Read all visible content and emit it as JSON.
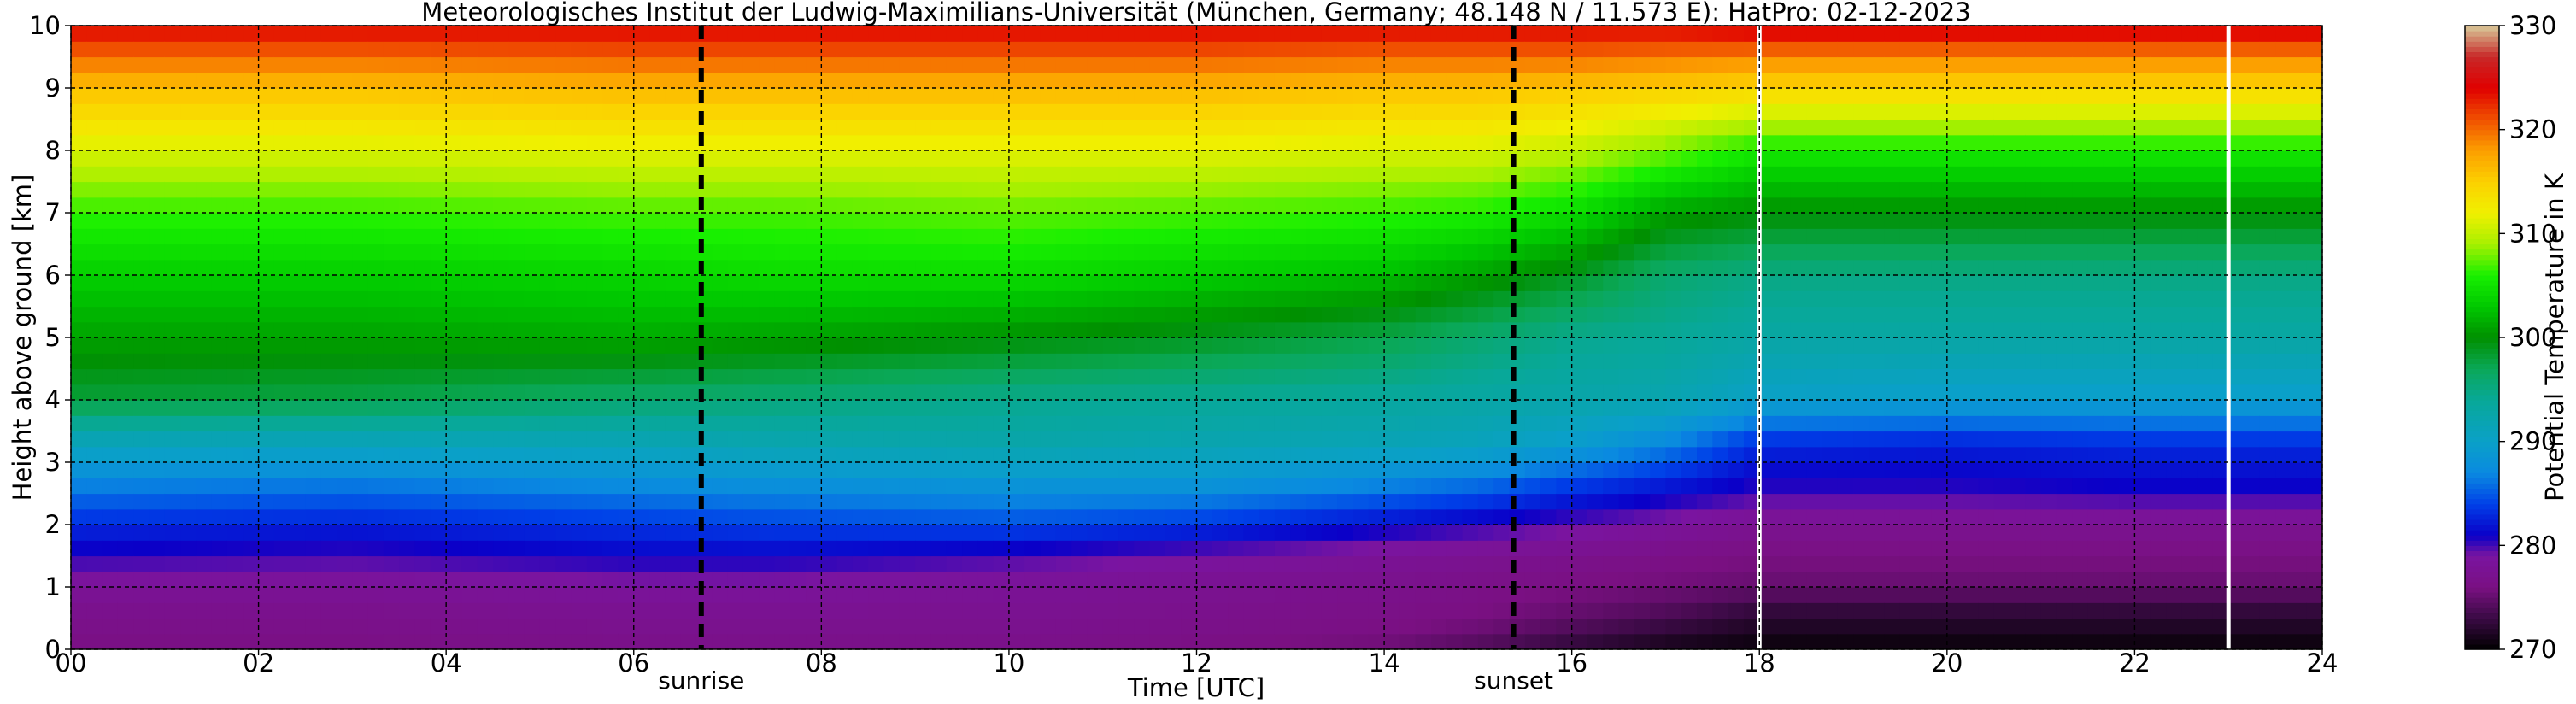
{
  "chart_data": {
    "type": "heatmap",
    "title": "Meteorologisches Institut der Ludwig-Maximilians-Universität (München, Germany; 48.148 N / 11.573 E):    HatPro: 02-12-2023",
    "xlabel": "Time [UTC]",
    "ylabel": "Height above ground [km]",
    "colorbar_label": "Potential Temperature in K",
    "xlim": [
      0,
      24
    ],
    "ylim": [
      0,
      10
    ],
    "x_ticks": [
      0,
      2,
      4,
      6,
      8,
      10,
      12,
      14,
      16,
      18,
      20,
      22,
      24
    ],
    "x_tick_labels": [
      "00",
      "02",
      "04",
      "06",
      "08",
      "10",
      "12",
      "14",
      "16",
      "18",
      "20",
      "22",
      "24"
    ],
    "y_ticks": [
      0,
      1,
      2,
      3,
      4,
      5,
      6,
      7,
      8,
      9,
      10
    ],
    "y_tick_labels": [
      "0",
      "1",
      "2",
      "3",
      "4",
      "5",
      "6",
      "7",
      "8",
      "9",
      "10"
    ],
    "clim": [
      270,
      330
    ],
    "colorbar_ticks": [
      270,
      280,
      290,
      300,
      310,
      320,
      330
    ],
    "colorbar_tick_labels": [
      "270",
      "280",
      "290",
      "300",
      "310",
      "320",
      "330"
    ],
    "grid": true,
    "grid_style": "dashed",
    "colormap": [
      {
        "value": 270,
        "color": "#000000"
      },
      {
        "value": 273,
        "color": "#3a0a44"
      },
      {
        "value": 276,
        "color": "#7a1082"
      },
      {
        "value": 279,
        "color": "#7a14a0"
      },
      {
        "value": 281,
        "color": "#0a00c8"
      },
      {
        "value": 284,
        "color": "#0040e8"
      },
      {
        "value": 287,
        "color": "#0a8ae0"
      },
      {
        "value": 290,
        "color": "#0aa0c8"
      },
      {
        "value": 294,
        "color": "#08a898"
      },
      {
        "value": 297,
        "color": "#0aa858"
      },
      {
        "value": 300,
        "color": "#009000"
      },
      {
        "value": 303,
        "color": "#00c800"
      },
      {
        "value": 306,
        "color": "#18f000"
      },
      {
        "value": 309,
        "color": "#a8f000"
      },
      {
        "value": 312,
        "color": "#f0f000"
      },
      {
        "value": 315,
        "color": "#fcd000"
      },
      {
        "value": 318,
        "color": "#fc9e00"
      },
      {
        "value": 321,
        "color": "#f05000"
      },
      {
        "value": 324,
        "color": "#e00000"
      },
      {
        "value": 327,
        "color": "#c82828"
      },
      {
        "value": 330,
        "color": "#d8c898"
      }
    ],
    "field_profile": {
      "description_heights_km": [
        0,
        0.2,
        0.6,
        1.0,
        1.5,
        2.0,
        2.6,
        3.3,
        4.0,
        5.0,
        6.0,
        7.0,
        8.0,
        9.0,
        9.5,
        10.0
      ],
      "times_utc": [
        0,
        3,
        6,
        7.5,
        10,
        12,
        14,
        15,
        16,
        17,
        18,
        20,
        22,
        24
      ],
      "theta_K": [
        [
          276.0,
          276.5,
          277.0,
          278.0,
          280.5,
          283.0,
          286.5,
          291.0,
          298.0,
          301.0,
          303.5,
          306.5,
          311.0,
          316.0,
          320.0,
          324.0
        ],
        [
          276.0,
          276.5,
          277.0,
          278.0,
          280.0,
          282.5,
          286.0,
          291.0,
          297.5,
          301.0,
          303.5,
          306.5,
          311.0,
          316.0,
          320.0,
          324.0
        ],
        [
          276.5,
          277.0,
          277.5,
          278.5,
          281.0,
          283.5,
          287.0,
          291.5,
          296.0,
          301.5,
          304.0,
          307.0,
          311.5,
          316.5,
          320.5,
          324.0
        ],
        [
          276.5,
          277.0,
          277.5,
          278.5,
          281.0,
          284.0,
          287.5,
          292.0,
          295.5,
          301.0,
          304.5,
          307.0,
          311.5,
          316.5,
          320.5,
          324.0
        ],
        [
          276.5,
          277.0,
          277.5,
          278.0,
          280.0,
          284.5,
          288.0,
          292.5,
          294.5,
          300.0,
          304.5,
          307.5,
          311.5,
          316.5,
          320.5,
          324.0
        ],
        [
          276.0,
          276.5,
          277.0,
          277.5,
          279.0,
          283.5,
          288.0,
          292.0,
          294.0,
          299.0,
          303.5,
          307.0,
          311.5,
          316.5,
          320.5,
          324.0
        ],
        [
          275.0,
          276.0,
          276.5,
          277.0,
          278.0,
          281.5,
          286.5,
          291.5,
          293.5,
          297.5,
          302.5,
          306.5,
          311.0,
          316.0,
          320.0,
          324.0
        ],
        [
          273.5,
          275.0,
          276.0,
          276.5,
          277.5,
          280.5,
          285.5,
          291.0,
          293.0,
          296.0,
          301.0,
          306.0,
          311.0,
          316.0,
          320.0,
          324.0
        ],
        [
          272.0,
          273.5,
          275.0,
          276.0,
          277.0,
          279.5,
          283.5,
          289.5,
          292.5,
          294.5,
          299.0,
          304.5,
          310.0,
          315.5,
          320.0,
          324.0
        ],
        [
          271.0,
          272.0,
          274.0,
          275.5,
          276.5,
          278.5,
          282.0,
          287.0,
          292.0,
          294.0,
          296.0,
          301.0,
          308.0,
          315.0,
          319.5,
          324.0
        ],
        [
          270.5,
          271.0,
          272.5,
          275.0,
          276.0,
          277.5,
          280.5,
          283.0,
          290.0,
          293.0,
          295.0,
          300.0,
          305.5,
          314.5,
          319.0,
          325.0
        ],
        [
          270.5,
          271.0,
          272.5,
          275.0,
          276.0,
          277.5,
          280.5,
          282.5,
          289.5,
          293.0,
          295.0,
          300.0,
          305.5,
          314.5,
          319.0,
          325.0
        ],
        [
          270.5,
          271.0,
          272.5,
          275.0,
          276.0,
          277.5,
          281.0,
          283.0,
          289.5,
          293.0,
          295.0,
          300.0,
          305.5,
          314.5,
          319.0,
          325.0
        ],
        [
          270.5,
          271.0,
          272.5,
          275.0,
          276.0,
          277.5,
          281.0,
          283.0,
          289.5,
          293.0,
          295.0,
          300.0,
          305.5,
          314.5,
          319.0,
          325.0
        ]
      ]
    },
    "data_gaps_utc": [
      18.0,
      23.0
    ],
    "events": [
      {
        "name": "sunrise",
        "time_utc": 6.72
      },
      {
        "name": "sunset",
        "time_utc": 15.38
      }
    ]
  }
}
